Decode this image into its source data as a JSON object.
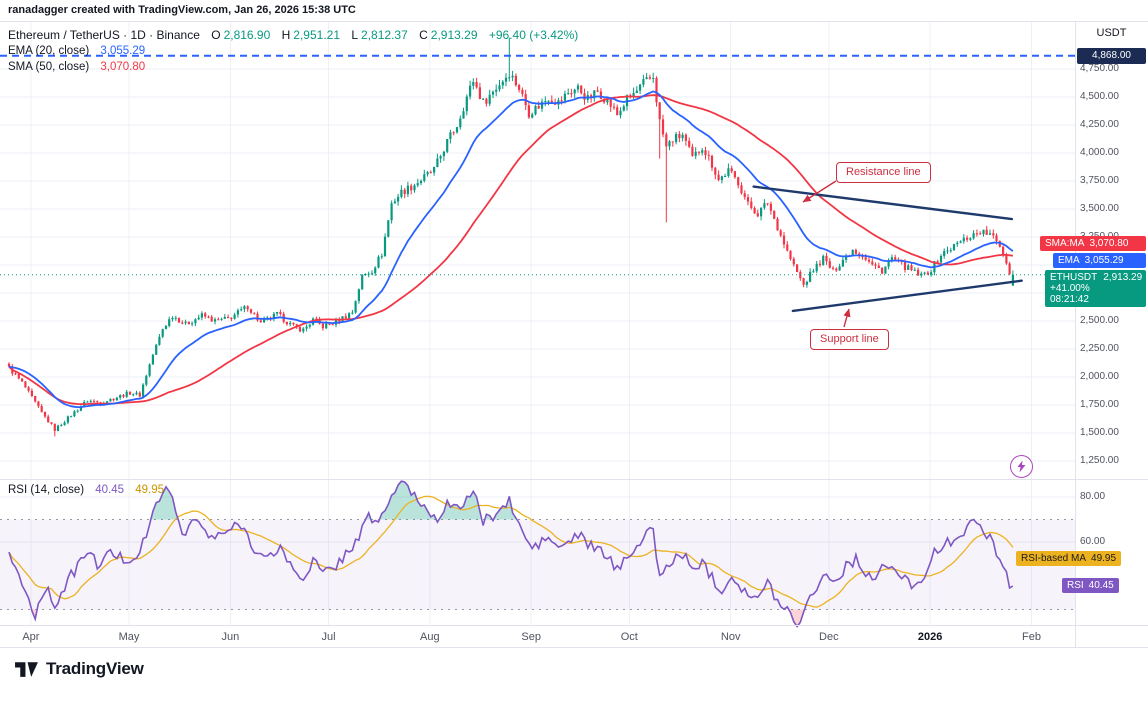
{
  "attribution": "ranadagger created with TradingView.com, Jan 26, 2026 15:38 UTC",
  "legend": {
    "title": "Ethereum / TetherUS · 1D · Binance",
    "open_label": "O",
    "open": "2,816.90",
    "high_label": "H",
    "high": "2,951.21",
    "low_label": "L",
    "low": "2,812.37",
    "close_label": "C",
    "close": "2,913.29",
    "change": "+96.40 (+3.42%)",
    "ema": {
      "label": "EMA (20, close)",
      "value": "3,055.29"
    },
    "sma": {
      "label": "SMA (50, close)",
      "value": "3,070.80"
    },
    "rsi": {
      "label": "RSI (14, close)",
      "value": "40.45",
      "ma_value": "49.95"
    }
  },
  "price_scale": {
    "currency": "USDT"
  },
  "price_axis_badges": {
    "trendline": "4,868.00",
    "sma": {
      "label": "SMA:MA",
      "value": "3,070.80"
    },
    "ema": {
      "label": "EMA",
      "value": "3,055.29"
    },
    "symbol": {
      "ticker": "ETHUSDT",
      "price": "2,913.29",
      "change_pct": "+41.00%",
      "countdown": "08:21:42"
    }
  },
  "rsi_axis_badges": {
    "ma": {
      "label": "RSI-based MA",
      "value": "49.95"
    },
    "rsi": {
      "label": "RSI",
      "value": "40.45"
    }
  },
  "annotations": {
    "resistance": "Resistance line",
    "support": "Support line"
  },
  "footer": {
    "brand": "TradingView"
  },
  "icons": {
    "flash": "lightning-bolt-icon",
    "logo": "tradingview-mark-icon"
  },
  "colors": {
    "up": "#089981",
    "down": "#f23645",
    "ema": "#2962ff",
    "sma": "#f23645",
    "rsi": "#7e57c2",
    "rsi_ma": "#edb220",
    "trendline": "#1e3a6d",
    "horizontal_line": "#2962ff",
    "annotation": "#cc2f3f",
    "badge_symbol_bg": "#089981",
    "badge_trendline_bg": "#1c2b54"
  },
  "chart_data": {
    "type": "candlestick",
    "symbol": "ETHUSDT",
    "exchange": "Binance",
    "interval": "1D",
    "days": 308,
    "last_candle": {
      "open": 2816.9,
      "high": 2951.21,
      "low": 2812.37,
      "close": 2913.29,
      "change": 96.4,
      "change_pct": 3.42
    },
    "indicators": {
      "ema20": 3055.29,
      "sma50": 3070.8,
      "rsi14": 40.45,
      "rsi_ma14": 49.95
    },
    "price_axis": {
      "min": 1125,
      "max": 5100,
      "ticks": [
        4750,
        4500,
        4250,
        4000,
        3750,
        3500,
        3250,
        3000,
        2750,
        2500,
        2250,
        2000,
        1750,
        1500,
        1250
      ]
    },
    "rsi_axis": {
      "ticks": [
        80,
        60
      ],
      "upper_band": 70,
      "lower_band": 30
    },
    "x_axis": {
      "months": [
        {
          "label": "Apr",
          "day": 7
        },
        {
          "label": "May",
          "day": 37
        },
        {
          "label": "Jun",
          "day": 68
        },
        {
          "label": "Jul",
          "day": 98
        },
        {
          "label": "Aug",
          "day": 129
        },
        {
          "label": "Sep",
          "day": 160
        },
        {
          "label": "Oct",
          "day": 190
        },
        {
          "label": "Nov",
          "day": 221
        },
        {
          "label": "Dec",
          "day": 251
        },
        {
          "label": "2026",
          "day": 282,
          "emphasis": true
        },
        {
          "label": "Feb",
          "day": 313
        }
      ]
    },
    "levels": [
      {
        "name": "horizontal-price-line",
        "price": 4868.0,
        "style": "dashed",
        "color": "#2962ff"
      },
      {
        "name": "last-price-line",
        "price": 2913.29,
        "style": "dotted",
        "color": "#089981"
      }
    ],
    "trendlines": [
      {
        "name": "resistance-trendline",
        "from_day": 228,
        "from_price": 3700,
        "to_day": 307,
        "to_price": 3410
      },
      {
        "name": "support-trendline",
        "from_day": 240,
        "from_price": 2590,
        "to_day": 310,
        "to_price": 2860
      }
    ],
    "close_anchors": [
      [
        0,
        2080
      ],
      [
        4,
        1950
      ],
      [
        10,
        1680
      ],
      [
        14,
        1530
      ],
      [
        19,
        1660
      ],
      [
        24,
        1790
      ],
      [
        28,
        1770
      ],
      [
        33,
        1820
      ],
      [
        37,
        1860
      ],
      [
        40,
        1840
      ],
      [
        44,
        2200
      ],
      [
        47,
        2430
      ],
      [
        50,
        2550
      ],
      [
        54,
        2470
      ],
      [
        59,
        2550
      ],
      [
        63,
        2500
      ],
      [
        67,
        2520
      ],
      [
        73,
        2630
      ],
      [
        77,
        2480
      ],
      [
        82,
        2560
      ],
      [
        87,
        2450
      ],
      [
        90,
        2420
      ],
      [
        93,
        2510
      ],
      [
        96,
        2450
      ],
      [
        99,
        2480
      ],
      [
        102,
        2530
      ],
      [
        105,
        2580
      ],
      [
        108,
        2900
      ],
      [
        111,
        2950
      ],
      [
        114,
        3100
      ],
      [
        117,
        3550
      ],
      [
        120,
        3650
      ],
      [
        123,
        3700
      ],
      [
        126,
        3760
      ],
      [
        130,
        3850
      ],
      [
        134,
        4100
      ],
      [
        137,
        4250
      ],
      [
        140,
        4500
      ],
      [
        142,
        4650
      ],
      [
        145,
        4450
      ],
      [
        148,
        4550
      ],
      [
        151,
        4650
      ],
      [
        153,
        4720
      ],
      [
        156,
        4580
      ],
      [
        159,
        4360
      ],
      [
        162,
        4420
      ],
      [
        165,
        4500
      ],
      [
        168,
        4450
      ],
      [
        171,
        4540
      ],
      [
        174,
        4580
      ],
      [
        177,
        4480
      ],
      [
        180,
        4550
      ],
      [
        183,
        4470
      ],
      [
        186,
        4340
      ],
      [
        189,
        4480
      ],
      [
        192,
        4550
      ],
      [
        194,
        4620
      ],
      [
        197,
        4680
      ],
      [
        199,
        4280
      ],
      [
        201,
        4050
      ],
      [
        203,
        4120
      ],
      [
        206,
        4160
      ],
      [
        209,
        3950
      ],
      [
        212,
        4060
      ],
      [
        215,
        3900
      ],
      [
        217,
        3760
      ],
      [
        220,
        3840
      ],
      [
        223,
        3740
      ],
      [
        226,
        3540
      ],
      [
        229,
        3460
      ],
      [
        232,
        3560
      ],
      [
        235,
        3340
      ],
      [
        238,
        3120
      ],
      [
        240,
        2990
      ],
      [
        243,
        2820
      ],
      [
        246,
        2960
      ],
      [
        249,
        3060
      ],
      [
        252,
        2940
      ],
      [
        255,
        3050
      ],
      [
        258,
        3140
      ],
      [
        261,
        3090
      ],
      [
        264,
        3000
      ],
      [
        267,
        2950
      ],
      [
        270,
        3060
      ],
      [
        273,
        3000
      ],
      [
        276,
        2950
      ],
      [
        279,
        2900
      ],
      [
        282,
        2960
      ],
      [
        285,
        3090
      ],
      [
        288,
        3150
      ],
      [
        291,
        3210
      ],
      [
        294,
        3260
      ],
      [
        297,
        3300
      ],
      [
        300,
        3270
      ],
      [
        303,
        3180
      ],
      [
        305,
        3020
      ],
      [
        306,
        2940
      ],
      [
        307,
        2913.29
      ]
    ],
    "wick_overrides": [
      [
        14,
        null,
        1470
      ],
      [
        153,
        5030,
        null
      ],
      [
        199,
        null,
        3950
      ],
      [
        201,
        null,
        3380
      ]
    ],
    "rsi_anchors": [
      [
        0,
        55
      ],
      [
        5,
        38
      ],
      [
        8,
        28
      ],
      [
        11,
        40
      ],
      [
        14,
        32
      ],
      [
        19,
        45
      ],
      [
        24,
        56
      ],
      [
        27,
        50
      ],
      [
        31,
        55
      ],
      [
        36,
        52
      ],
      [
        40,
        55
      ],
      [
        44,
        72
      ],
      [
        47,
        84
      ],
      [
        50,
        79
      ],
      [
        53,
        64
      ],
      [
        57,
        70
      ],
      [
        62,
        61
      ],
      [
        67,
        65
      ],
      [
        71,
        68
      ],
      [
        76,
        55
      ],
      [
        79,
        52
      ],
      [
        83,
        58
      ],
      [
        87,
        47
      ],
      [
        90,
        44
      ],
      [
        93,
        52
      ],
      [
        96,
        46
      ],
      [
        99,
        48
      ],
      [
        102,
        53
      ],
      [
        106,
        60
      ],
      [
        110,
        71
      ],
      [
        113,
        69
      ],
      [
        116,
        77
      ],
      [
        119,
        86
      ],
      [
        122,
        84
      ],
      [
        125,
        79
      ],
      [
        128,
        74
      ],
      [
        131,
        71
      ],
      [
        134,
        77
      ],
      [
        137,
        74
      ],
      [
        140,
        80
      ],
      [
        142,
        82
      ],
      [
        145,
        69
      ],
      [
        148,
        72
      ],
      [
        151,
        75
      ],
      [
        153,
        78
      ],
      [
        157,
        64
      ],
      [
        160,
        57
      ],
      [
        165,
        62
      ],
      [
        168,
        57
      ],
      [
        171,
        60
      ],
      [
        174,
        63
      ],
      [
        179,
        57
      ],
      [
        183,
        54
      ],
      [
        186,
        47
      ],
      [
        189,
        55
      ],
      [
        192,
        58
      ],
      [
        197,
        66
      ],
      [
        199,
        44
      ],
      [
        203,
        52
      ],
      [
        206,
        55
      ],
      [
        209,
        47
      ],
      [
        212,
        52
      ],
      [
        215,
        44
      ],
      [
        218,
        39
      ],
      [
        221,
        45
      ],
      [
        226,
        37
      ],
      [
        229,
        34
      ],
      [
        232,
        42
      ],
      [
        235,
        34
      ],
      [
        238,
        30
      ],
      [
        241,
        24
      ],
      [
        244,
        32
      ],
      [
        247,
        41
      ],
      [
        250,
        46
      ],
      [
        253,
        42
      ],
      [
        256,
        50
      ],
      [
        259,
        52
      ],
      [
        262,
        47
      ],
      [
        265,
        43
      ],
      [
        268,
        50
      ],
      [
        271,
        47
      ],
      [
        274,
        43
      ],
      [
        277,
        41
      ],
      [
        280,
        46
      ],
      [
        283,
        55
      ],
      [
        286,
        58
      ],
      [
        289,
        62
      ],
      [
        292,
        65
      ],
      [
        295,
        68
      ],
      [
        298,
        66
      ],
      [
        301,
        60
      ],
      [
        304,
        48
      ],
      [
        306,
        42
      ],
      [
        307,
        40.45
      ]
    ]
  }
}
